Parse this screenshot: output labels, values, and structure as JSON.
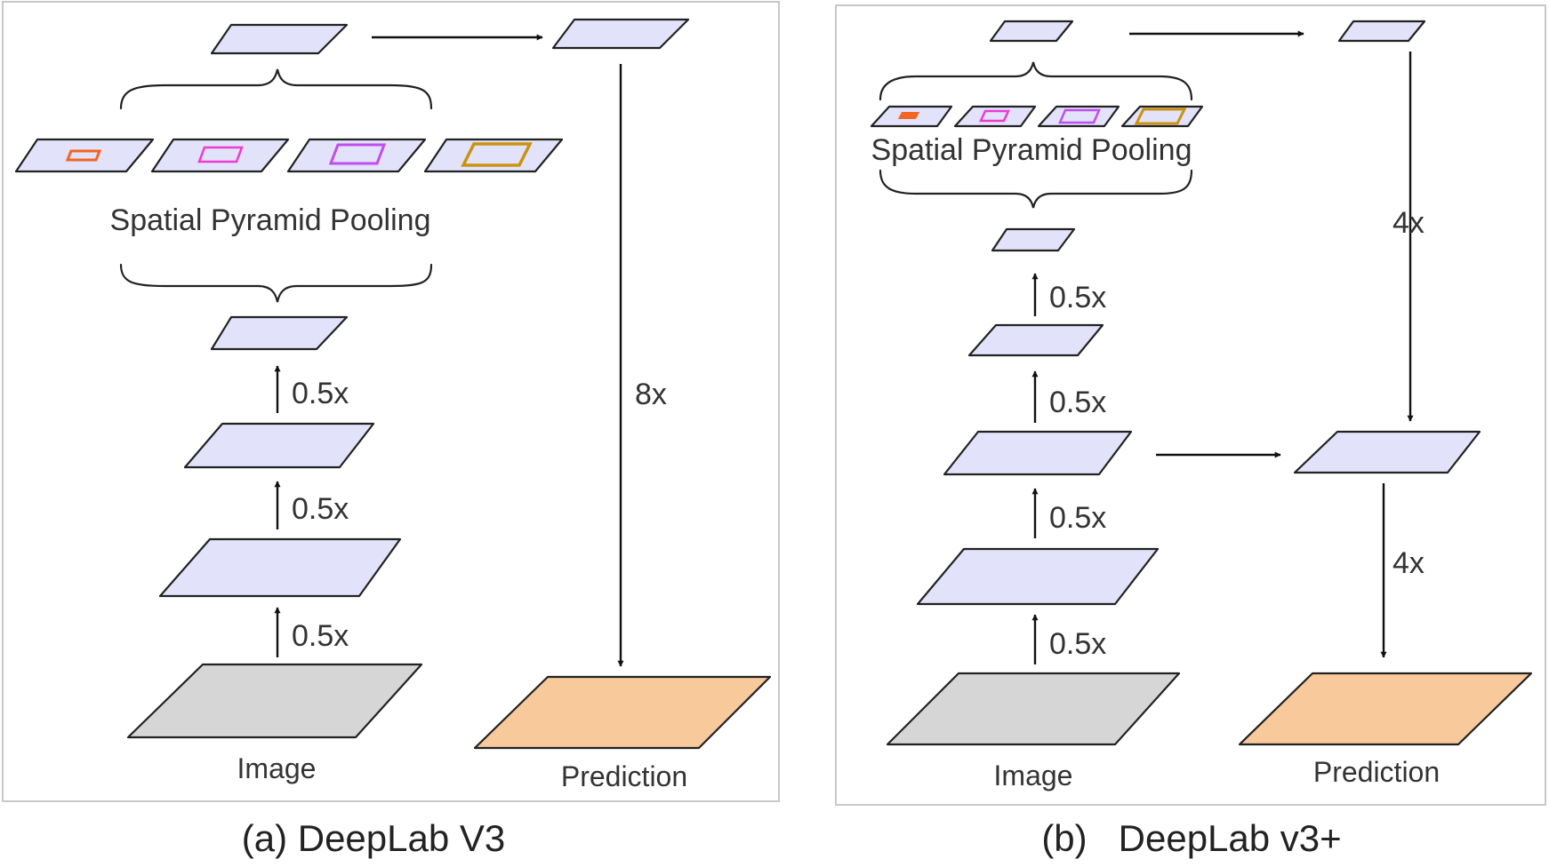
{
  "panels": {
    "a": {
      "caption": "(a) DeepLab V3",
      "spp_label": "Spatial Pyramid Pooling",
      "input_label": "Image",
      "output_label": "Prediction",
      "downsample_labels": [
        "0.5x",
        "0.5x",
        "0.5x"
      ],
      "upsample_label": "8x"
    },
    "b": {
      "caption": "(b)   DeepLab v3+",
      "spp_label": "Spatial Pyramid Pooling",
      "input_label": "Image",
      "output_label": "Prediction",
      "downsample_labels": [
        "0.5x",
        "0.5x",
        "0.5x",
        "0.5x"
      ],
      "upsample_labels": [
        "4x",
        "4x"
      ]
    }
  },
  "colors": {
    "feature_map": "#e2e2fa",
    "image": "#d6d6d6",
    "prediction": "#f8c99a",
    "pool_1": "#f26522",
    "pool_2": "#ee3bd2",
    "pool_3": "#c24cf0",
    "pool_4": "#c9930e"
  }
}
